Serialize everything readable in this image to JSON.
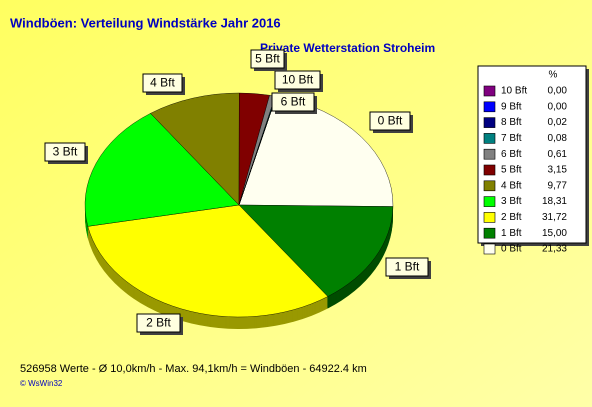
{
  "chart_data": {
    "type": "pie",
    "title": "Windböen: Verteilung Windstärke  Jahr 2016",
    "subtitle": "Private Wetterstation Stroheim",
    "legend_header": "%",
    "categories": [
      "10 Bft",
      "9 Bft",
      "8 Bft",
      "7 Bft",
      "6 Bft",
      "5 Bft",
      "4 Bft",
      "3 Bft",
      "2 Bft",
      "1 Bft",
      "0 Bft"
    ],
    "values": [
      0,
      0,
      0.02,
      0.08,
      0.61,
      3.15,
      9.77,
      18.31,
      31.72,
      15.0,
      21.33
    ],
    "value_labels": [
      "0,00",
      "0,00",
      "0,02",
      "0,08",
      "0,61",
      "3,15",
      "9,77",
      "18,31",
      "31,72",
      "15,00",
      "21,33"
    ],
    "colors": [
      "#800080",
      "#0000ff",
      "#000080",
      "#008080",
      "#808080",
      "#800000",
      "#808000",
      "#00ff00",
      "#ffff00",
      "#008000",
      "#fffff0"
    ],
    "footer": "526958 Werte   -   Ø 10,0km/h  -  Max. 94,1km/h = Windböen   -   64922.4 km",
    "credit": "© WsWin32"
  }
}
